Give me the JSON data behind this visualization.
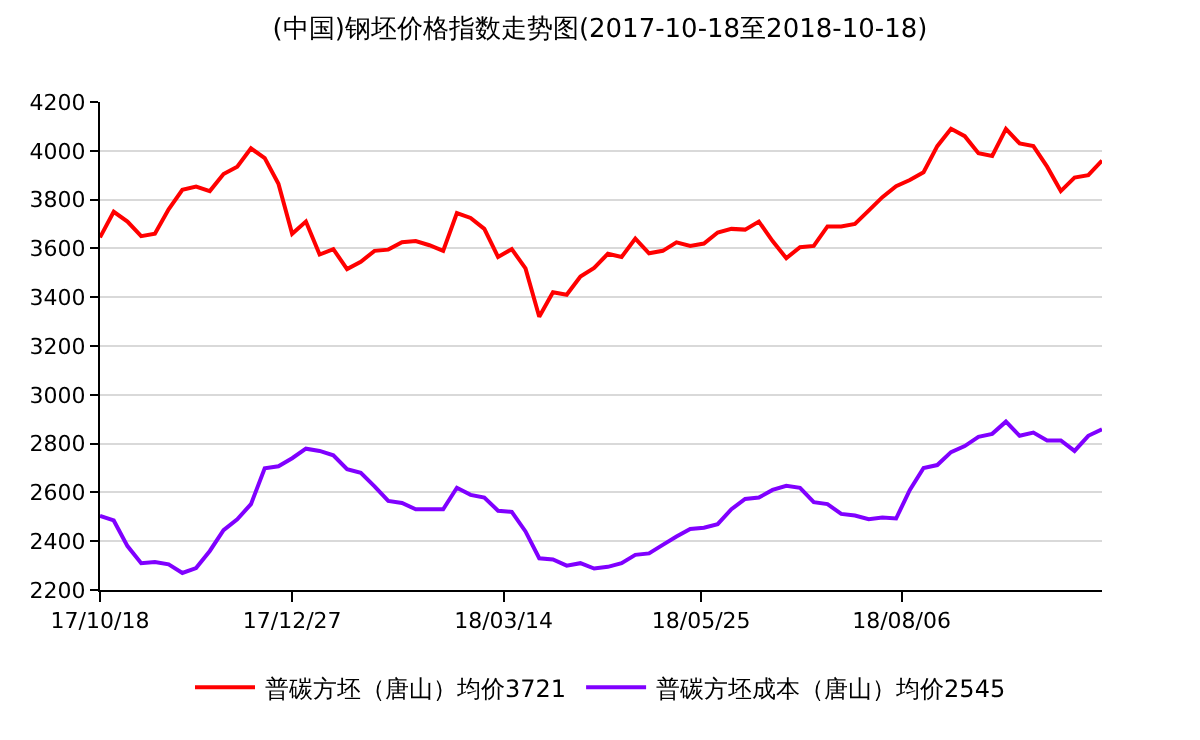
{
  "chart_data": {
    "type": "line",
    "title": "(中国)钢坯价格指数走势图(2017-10-18至2018-10-18)",
    "x": [
      "2017-10-18",
      "2017-10-23",
      "2017-10-28",
      "2017-11-02",
      "2017-11-07",
      "2017-11-12",
      "2017-11-17",
      "2017-11-22",
      "2017-11-27",
      "2017-12-02",
      "2017-12-07",
      "2017-12-12",
      "2017-12-17",
      "2017-12-22",
      "2017-12-27",
      "2018-01-01",
      "2018-01-06",
      "2018-01-11",
      "2018-01-16",
      "2018-01-21",
      "2018-01-26",
      "2018-01-31",
      "2018-02-05",
      "2018-02-10",
      "2018-02-15",
      "2018-02-20",
      "2018-02-25",
      "2018-03-02",
      "2018-03-07",
      "2018-03-12",
      "2018-03-17",
      "2018-03-22",
      "2018-03-27",
      "2018-04-01",
      "2018-04-06",
      "2018-04-11",
      "2018-04-16",
      "2018-04-21",
      "2018-04-26",
      "2018-05-01",
      "2018-05-06",
      "2018-05-11",
      "2018-05-16",
      "2018-05-21",
      "2018-05-26",
      "2018-05-31",
      "2018-06-05",
      "2018-06-10",
      "2018-06-15",
      "2018-06-20",
      "2018-06-25",
      "2018-06-30",
      "2018-07-05",
      "2018-07-10",
      "2018-07-15",
      "2018-07-20",
      "2018-07-25",
      "2018-07-30",
      "2018-08-04",
      "2018-08-09",
      "2018-08-14",
      "2018-08-19",
      "2018-08-24",
      "2018-08-29",
      "2018-09-03",
      "2018-09-08",
      "2018-09-13",
      "2018-09-18",
      "2018-09-23",
      "2018-09-28",
      "2018-10-03",
      "2018-10-08",
      "2018-10-13",
      "2018-10-18"
    ],
    "series": [
      {
        "name": "普碳方坯（唐山）均价3721",
        "color": "#ff0000",
        "values": [
          3645,
          3750,
          3710,
          3650,
          3660,
          3760,
          3840,
          3853,
          3835,
          3905,
          3935,
          4010,
          3970,
          3865,
          3660,
          3710,
          3575,
          3597,
          3515,
          3545,
          3590,
          3595,
          3625,
          3630,
          3613,
          3590,
          3745,
          3725,
          3680,
          3565,
          3597,
          3518,
          3320,
          3420,
          3410,
          3485,
          3520,
          3578,
          3565,
          3640,
          3580,
          3590,
          3625,
          3610,
          3620,
          3665,
          3680,
          3677,
          3710,
          3630,
          3560,
          3605,
          3610,
          3690,
          3690,
          3700,
          3755,
          3810,
          3855,
          3880,
          3912,
          4019,
          4090,
          4060,
          3990,
          3979,
          4090,
          4030,
          4019,
          3935,
          3835,
          3890,
          3900,
          3960
        ]
      },
      {
        "name": "普碳方坯成本（唐山）均价2545",
        "color": "#8000ff",
        "values": [
          2504,
          2485,
          2380,
          2310,
          2315,
          2305,
          2270,
          2290,
          2360,
          2445,
          2490,
          2552,
          2699,
          2707,
          2740,
          2779,
          2770,
          2752,
          2695,
          2680,
          2625,
          2565,
          2557,
          2531,
          2531,
          2531,
          2619,
          2590,
          2579,
          2525,
          2520,
          2440,
          2330,
          2325,
          2300,
          2310,
          2288,
          2295,
          2310,
          2344,
          2350,
          2385,
          2419,
          2450,
          2455,
          2470,
          2531,
          2573,
          2579,
          2610,
          2627,
          2619,
          2560,
          2552,
          2512,
          2505,
          2490,
          2497,
          2493,
          2610,
          2700,
          2712,
          2765,
          2790,
          2828,
          2840,
          2890,
          2832,
          2845,
          2813,
          2813,
          2770,
          2832,
          2859
        ]
      }
    ],
    "xlim": [
      "2017-10-18",
      "2018-10-18"
    ],
    "xticks": [
      {
        "value": "2017-10-18",
        "label": "17/10/18"
      },
      {
        "value": "2017-12-27",
        "label": "17/12/27"
      },
      {
        "value": "2018-03-14",
        "label": "18/03/14"
      },
      {
        "value": "2018-05-25",
        "label": "18/05/25"
      },
      {
        "value": "2018-08-06",
        "label": "18/08/06"
      }
    ],
    "ylim": [
      2200,
      4200
    ],
    "yticks": [
      2200,
      2400,
      2600,
      2800,
      3000,
      3200,
      3400,
      3600,
      3800,
      4000,
      4200
    ],
    "grid": "y",
    "legend": "bottom",
    "marker": "none",
    "line_style": "solid"
  }
}
